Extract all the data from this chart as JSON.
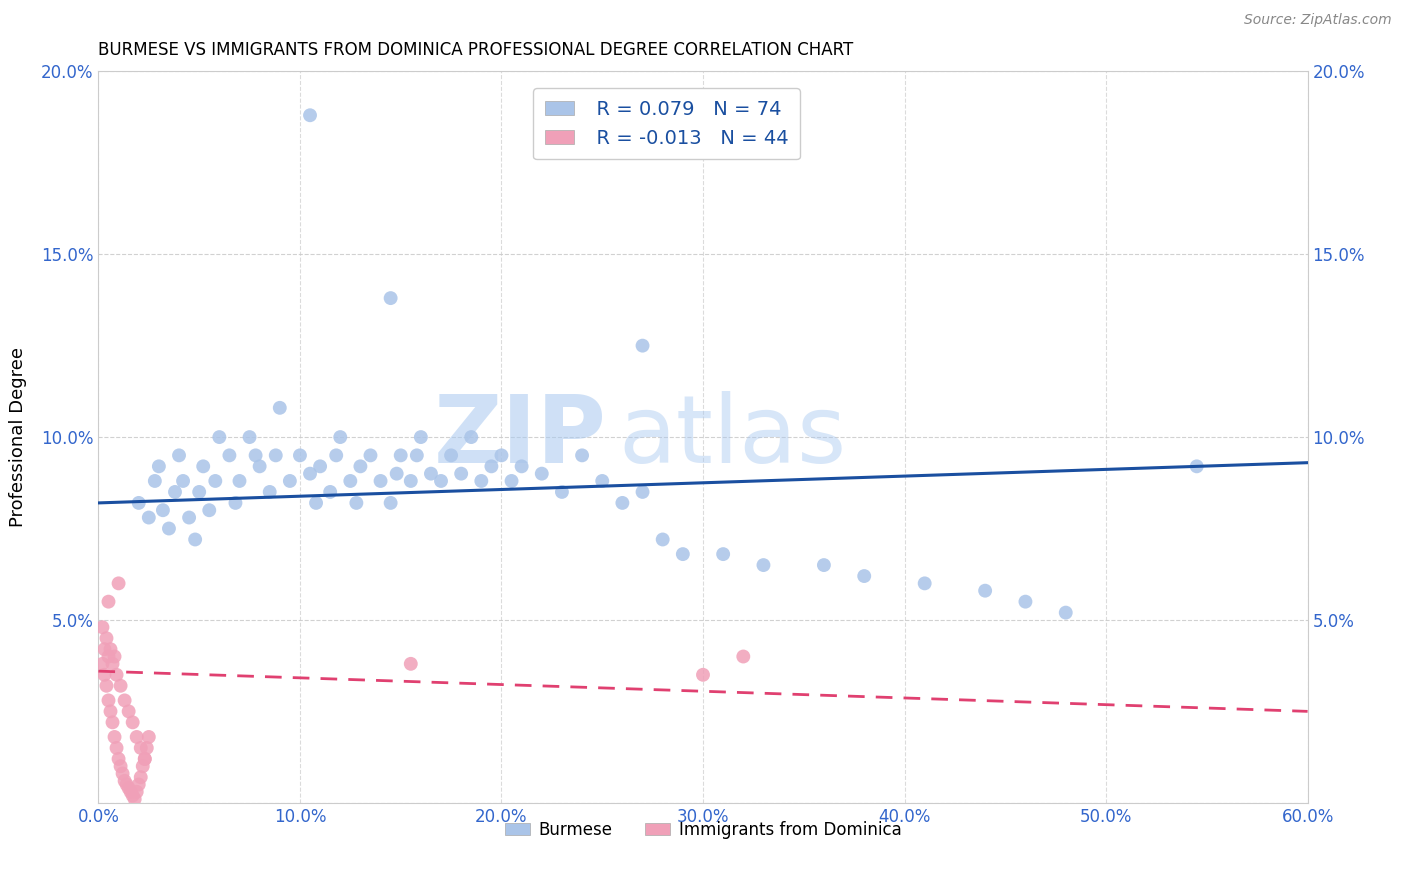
{
  "title": "BURMESE VS IMMIGRANTS FROM DOMINICA PROFESSIONAL DEGREE CORRELATION CHART",
  "source": "Source: ZipAtlas.com",
  "ylabel": "Professional Degree",
  "xlim": [
    0,
    0.6
  ],
  "ylim": [
    0,
    0.2
  ],
  "xticks": [
    0.0,
    0.1,
    0.2,
    0.3,
    0.4,
    0.5,
    0.6
  ],
  "yticks": [
    0.0,
    0.05,
    0.1,
    0.15,
    0.2
  ],
  "xtick_labels": [
    "0.0%",
    "10.0%",
    "20.0%",
    "30.0%",
    "40.0%",
    "50.0%",
    "60.0%"
  ],
  "ytick_labels": [
    "",
    "5.0%",
    "10.0%",
    "15.0%",
    "20.0%"
  ],
  "burmese_color": "#aac4e8",
  "dominica_color": "#f0a0b8",
  "burmese_line_color": "#1a4fa0",
  "dominica_line_color": "#e04070",
  "burmese_R": 0.079,
  "burmese_N": 74,
  "dominica_R": -0.013,
  "dominica_N": 44,
  "legend_label_1": "Burmese",
  "legend_label_2": "Immigrants from Dominica",
  "watermark_zip": "ZIP",
  "watermark_atlas": "atlas",
  "burmese_x": [
    0.02,
    0.025,
    0.028,
    0.03,
    0.032,
    0.035,
    0.038,
    0.04,
    0.042,
    0.045,
    0.048,
    0.05,
    0.052,
    0.055,
    0.058,
    0.06,
    0.065,
    0.068,
    0.07,
    0.075,
    0.078,
    0.08,
    0.085,
    0.088,
    0.09,
    0.095,
    0.1,
    0.105,
    0.108,
    0.11,
    0.115,
    0.118,
    0.12,
    0.125,
    0.128,
    0.13,
    0.135,
    0.14,
    0.145,
    0.148,
    0.15,
    0.155,
    0.158,
    0.16,
    0.165,
    0.17,
    0.175,
    0.18,
    0.185,
    0.19,
    0.195,
    0.2,
    0.205,
    0.21,
    0.22,
    0.23,
    0.24,
    0.25,
    0.26,
    0.27,
    0.28,
    0.29,
    0.31,
    0.33,
    0.36,
    0.38,
    0.41,
    0.44,
    0.46,
    0.48,
    0.27,
    0.145,
    0.545,
    0.105
  ],
  "burmese_y": [
    0.082,
    0.078,
    0.088,
    0.092,
    0.08,
    0.075,
    0.085,
    0.095,
    0.088,
    0.078,
    0.072,
    0.085,
    0.092,
    0.08,
    0.088,
    0.1,
    0.095,
    0.082,
    0.088,
    0.1,
    0.095,
    0.092,
    0.085,
    0.095,
    0.108,
    0.088,
    0.095,
    0.09,
    0.082,
    0.092,
    0.085,
    0.095,
    0.1,
    0.088,
    0.082,
    0.092,
    0.095,
    0.088,
    0.082,
    0.09,
    0.095,
    0.088,
    0.095,
    0.1,
    0.09,
    0.088,
    0.095,
    0.09,
    0.1,
    0.088,
    0.092,
    0.095,
    0.088,
    0.092,
    0.09,
    0.085,
    0.095,
    0.088,
    0.082,
    0.085,
    0.072,
    0.068,
    0.068,
    0.065,
    0.065,
    0.062,
    0.06,
    0.058,
    0.055,
    0.052,
    0.125,
    0.138,
    0.092,
    0.188
  ],
  "dominica_x": [
    0.002,
    0.003,
    0.004,
    0.005,
    0.006,
    0.007,
    0.008,
    0.009,
    0.01,
    0.011,
    0.012,
    0.013,
    0.014,
    0.015,
    0.016,
    0.017,
    0.018,
    0.019,
    0.02,
    0.021,
    0.022,
    0.023,
    0.024,
    0.025,
    0.003,
    0.005,
    0.007,
    0.009,
    0.011,
    0.013,
    0.015,
    0.017,
    0.019,
    0.021,
    0.023,
    0.002,
    0.004,
    0.006,
    0.008,
    0.3,
    0.32,
    0.155,
    0.005,
    0.01
  ],
  "dominica_y": [
    0.038,
    0.035,
    0.032,
    0.028,
    0.025,
    0.022,
    0.018,
    0.015,
    0.012,
    0.01,
    0.008,
    0.006,
    0.005,
    0.004,
    0.003,
    0.002,
    0.001,
    0.003,
    0.005,
    0.007,
    0.01,
    0.012,
    0.015,
    0.018,
    0.042,
    0.04,
    0.038,
    0.035,
    0.032,
    0.028,
    0.025,
    0.022,
    0.018,
    0.015,
    0.012,
    0.048,
    0.045,
    0.042,
    0.04,
    0.035,
    0.04,
    0.038,
    0.055,
    0.06
  ],
  "burmese_line_x": [
    0.0,
    0.6
  ],
  "burmese_line_y": [
    0.082,
    0.093
  ],
  "dominica_line_x": [
    0.0,
    0.6
  ],
  "dominica_line_y": [
    0.036,
    0.025
  ]
}
